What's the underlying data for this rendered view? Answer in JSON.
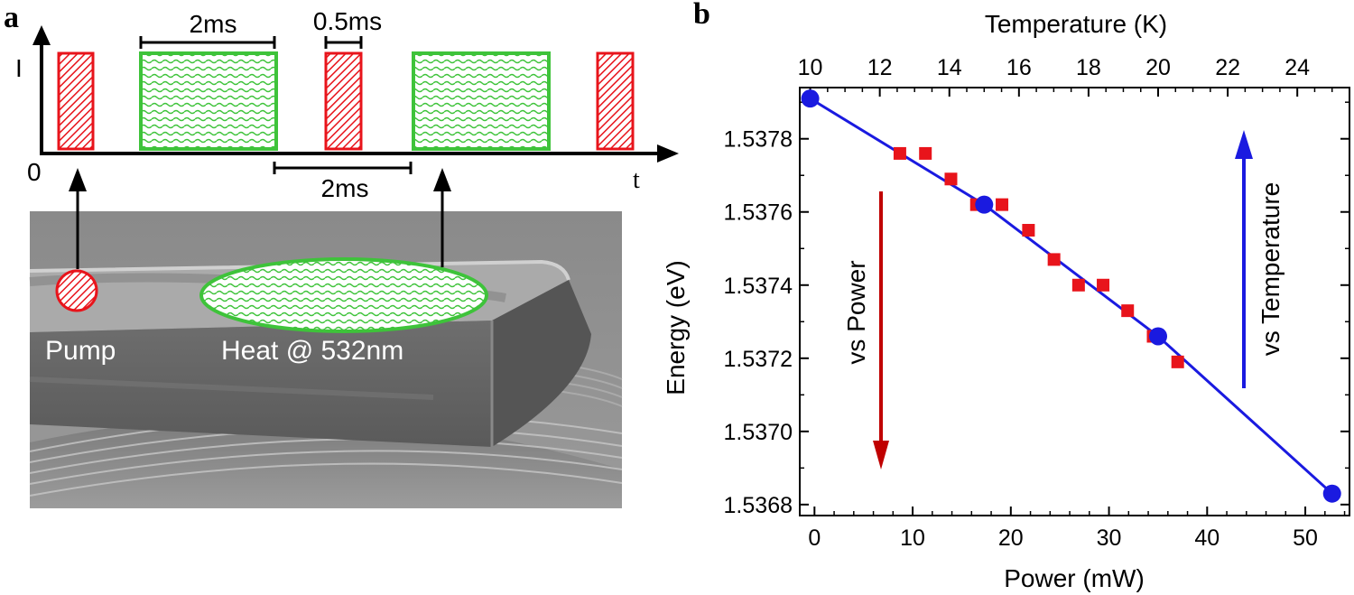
{
  "panel_a": {
    "letter": "a",
    "y_axis_label": "I",
    "x_axis_label": "t",
    "origin_label": "0",
    "dim_heat_width": "2ms",
    "dim_pump_width": "0.5ms",
    "dim_pump_spacing": "2ms",
    "pump_label": "Pump",
    "heat_label": "Heat @ 532nm",
    "colors": {
      "pump": "#e8141b",
      "heat": "#3ec33a",
      "heat_fill": "#e8f8e6",
      "axis": "#000000"
    },
    "icons": [
      "hatched-pump-pulse",
      "wavy-heat-pulse",
      "sem-micropillar-image"
    ]
  },
  "panel_b": {
    "letter": "b",
    "bottom_axis_title": "Power (mW)",
    "top_axis_title": "Temperature (K)",
    "left_axis_title": "Energy (eV)",
    "annotation_power": "vs Power",
    "annotation_temperature": "vs Temperature",
    "bottom_ticks": [
      "0",
      "10",
      "20",
      "30",
      "40",
      "50"
    ],
    "top_ticks": [
      "10",
      "12",
      "14",
      "16",
      "18",
      "20",
      "22",
      "24"
    ],
    "left_ticks": [
      "1.5368",
      "1.5370",
      "1.5372",
      "1.5374",
      "1.5376",
      "1.5378"
    ],
    "colors": {
      "power_series": "#e8141b",
      "temperature_series": "#1a1ae0",
      "power_arrow": "#c00000",
      "temperature_arrow": "#1a1ae0"
    }
  },
  "chart_data": {
    "type": "scatter",
    "xlabel": "Power (mW)",
    "x2label": "Temperature (K)",
    "ylabel": "Energy (eV)",
    "xlim": [
      -1.5,
      54.5
    ],
    "x2lim": [
      9.7,
      25.5
    ],
    "ylim": [
      1.53677,
      1.53794
    ],
    "grid": false,
    "series": [
      {
        "axis": "bottom",
        "marker": "square",
        "color": "#e8141b",
        "points": [
          [
            8.7,
            1.53776
          ],
          [
            11.3,
            1.53776
          ],
          [
            13.9,
            1.53769
          ],
          [
            16.5,
            1.53762
          ],
          [
            19.1,
            1.53762
          ],
          [
            21.8,
            1.53755
          ],
          [
            24.4,
            1.53747
          ],
          [
            26.9,
            1.5374
          ],
          [
            29.4,
            1.5374
          ],
          [
            31.9,
            1.53733
          ],
          [
            34.5,
            1.53726
          ],
          [
            37.0,
            1.53719
          ]
        ]
      },
      {
        "axis": "top",
        "marker": "circle",
        "color": "#1a1ae0",
        "points": [
          [
            10,
            1.53791
          ],
          [
            15,
            1.53762
          ],
          [
            20,
            1.53726
          ],
          [
            25,
            1.53683
          ]
        ],
        "fit_line": true
      }
    ]
  }
}
